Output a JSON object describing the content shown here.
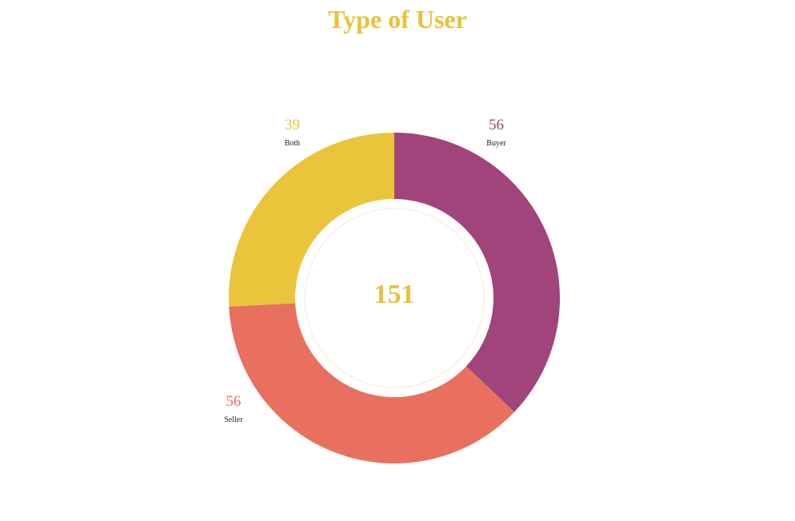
{
  "chart_data": {
    "type": "pie",
    "variant": "donut",
    "title": "Type of User",
    "title_color": "#E9C23A",
    "total": 151,
    "total_color": "#E9C23A",
    "slices": [
      {
        "label": "Buyer",
        "value": 56,
        "color": "#A0447B"
      },
      {
        "label": "Seller",
        "value": 56,
        "color": "#E9705E"
      },
      {
        "label": "Both",
        "value": 39,
        "color": "#EAC43A"
      }
    ]
  }
}
